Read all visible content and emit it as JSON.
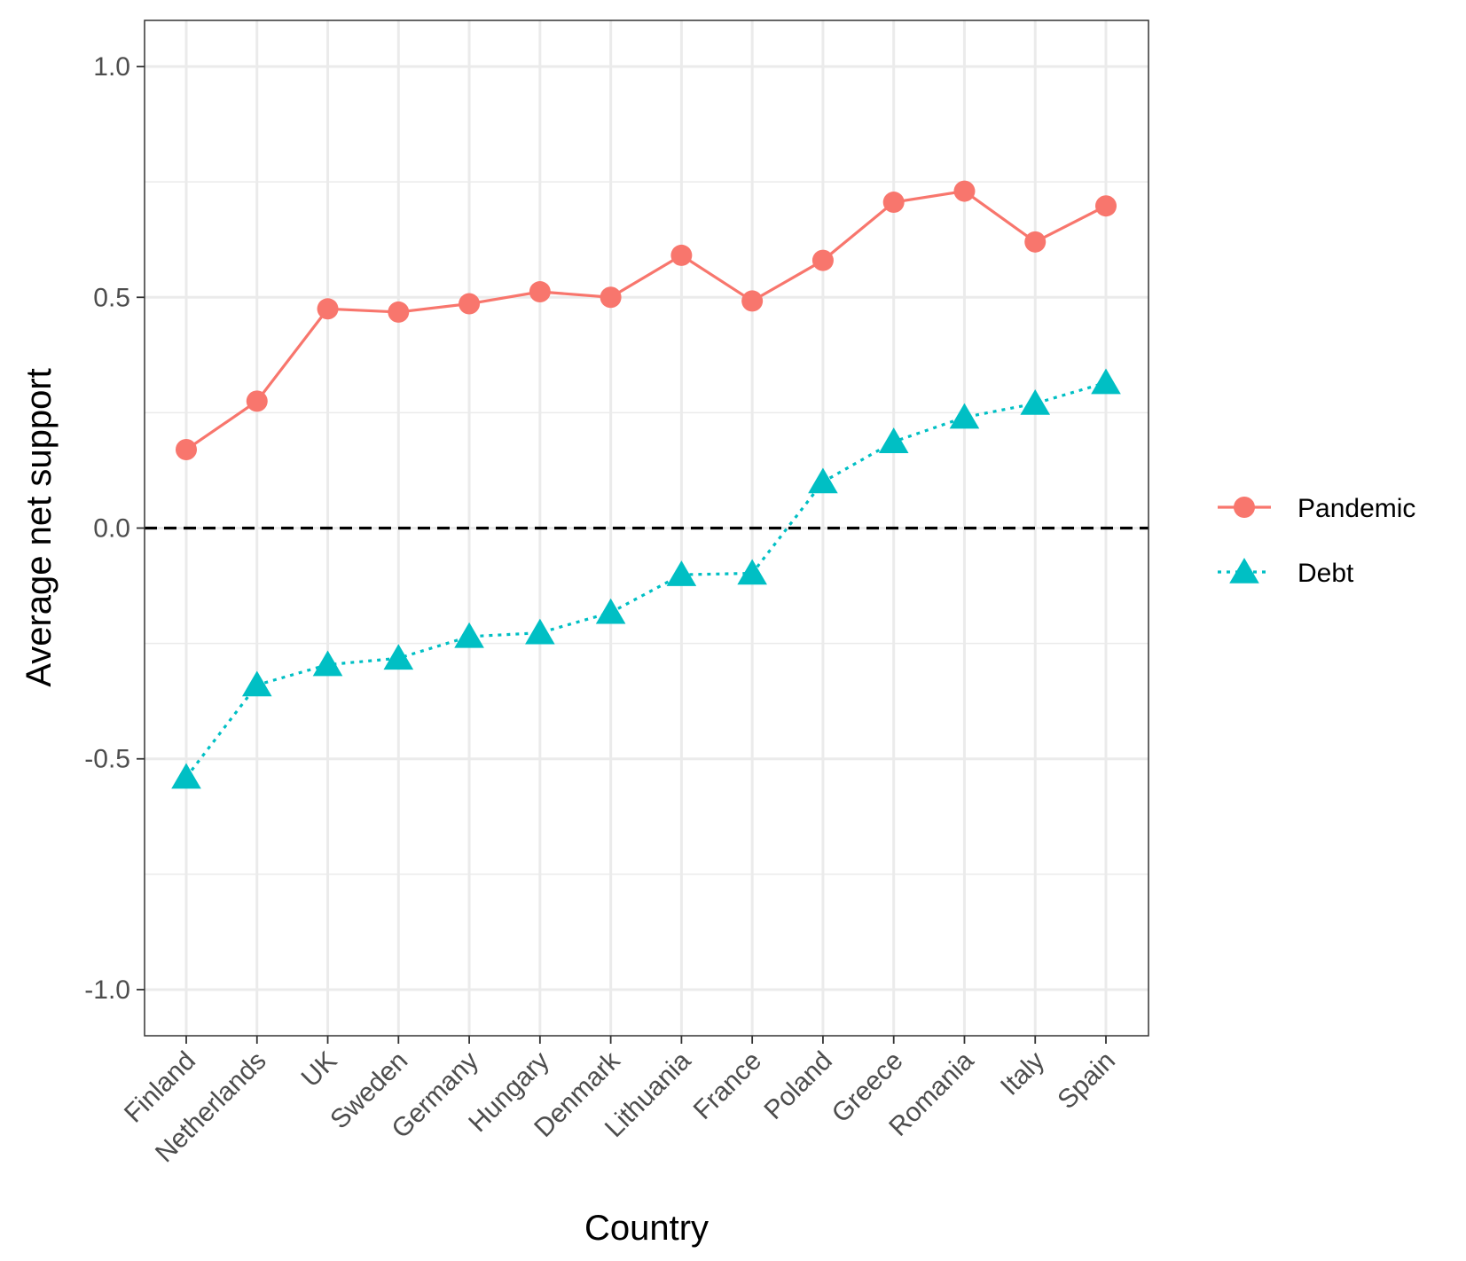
{
  "chart_data": {
    "type": "line",
    "categories": [
      "Finland",
      "Netherlands",
      "UK",
      "Sweden",
      "Germany",
      "Hungary",
      "Denmark",
      "Lithuania",
      "France",
      "Poland",
      "Greece",
      "Romania",
      "Italy",
      "Spain"
    ],
    "series": [
      {
        "name": "Pandemic",
        "color": "#F8766D",
        "marker": "circle",
        "line_style": "solid",
        "values": [
          0.17,
          0.275,
          0.475,
          0.468,
          0.486,
          0.512,
          0.5,
          0.591,
          0.492,
          0.58,
          0.706,
          0.73,
          0.62,
          0.698
        ]
      },
      {
        "name": "Debt",
        "color": "#00BFC4",
        "marker": "triangle",
        "line_style": "dotted",
        "values": [
          -0.54,
          -0.34,
          -0.296,
          -0.282,
          -0.235,
          -0.227,
          -0.183,
          -0.101,
          -0.098,
          0.1,
          0.187,
          0.24,
          0.27,
          0.315
        ]
      }
    ],
    "xlabel": "Country",
    "ylabel": "Average net support",
    "ylim": [
      -1.1,
      1.1
    ],
    "yticks": [
      -1.0,
      -0.5,
      0.0,
      0.5,
      1.0
    ],
    "ytick_labels": [
      "-1.0",
      "-0.5",
      "0.0",
      "0.5",
      "1.0"
    ],
    "reference_line": 0,
    "grid": true,
    "legend_position": "right"
  }
}
